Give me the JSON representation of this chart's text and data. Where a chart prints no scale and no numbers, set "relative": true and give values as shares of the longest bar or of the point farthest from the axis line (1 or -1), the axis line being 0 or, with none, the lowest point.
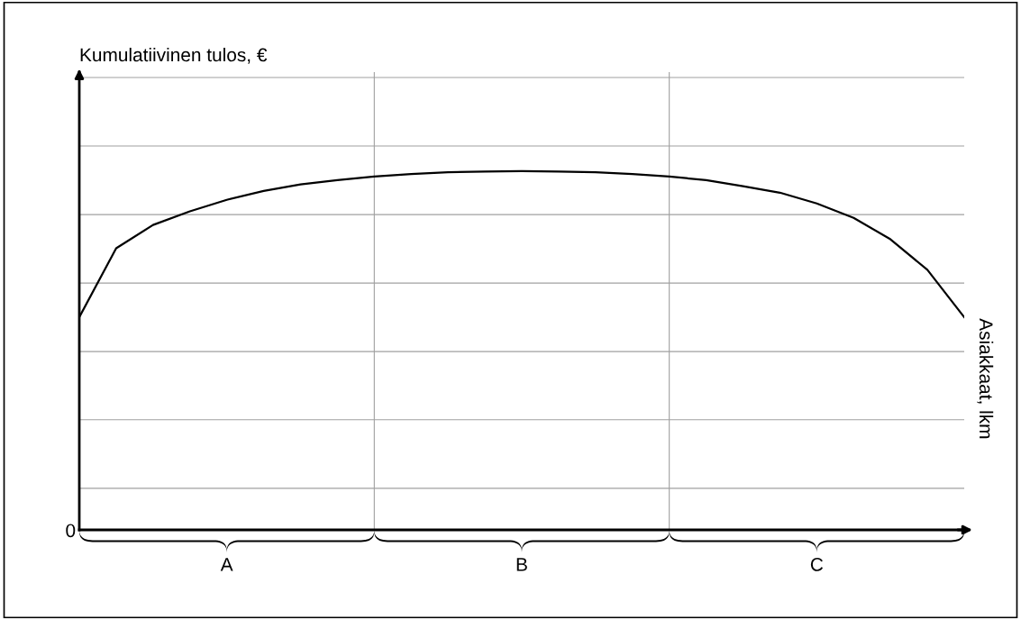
{
  "chart_data": {
    "type": "line",
    "relative": true,
    "categories": [
      null,
      null,
      null,
      null,
      null,
      null,
      null,
      null,
      null,
      null,
      null,
      null,
      null,
      null,
      null,
      null,
      null,
      null,
      null,
      null,
      null,
      null,
      null,
      null,
      null
    ],
    "series": [
      {
        "color": "#000000",
        "values": [
          0.593,
          0.785,
          0.85,
          0.888,
          0.92,
          0.945,
          0.963,
          0.975,
          0.985,
          0.992,
          0.997,
          0.999,
          1,
          0.999,
          0.997,
          0.992,
          0.985,
          0.975,
          0.958,
          0.94,
          0.91,
          0.87,
          0.81,
          0.725,
          0.593
        ]
      }
    ],
    "ref_lines": [
      {
        "axis": "y",
        "value": 0.116,
        "color": "#a0a0a0"
      },
      {
        "axis": "y",
        "value": 0.307,
        "color": "#a0a0a0"
      },
      {
        "axis": "y",
        "value": 0.497,
        "color": "#a0a0a0"
      },
      {
        "axis": "y",
        "value": 0.688,
        "color": "#a0a0a0"
      },
      {
        "axis": "y",
        "value": 0.879,
        "color": "#a0a0a0"
      },
      {
        "axis": "y",
        "value": 1.07,
        "color": "#a0a0a0"
      },
      {
        "axis": "y",
        "value": 1.261,
        "color": "#a0a0a0"
      }
    ],
    "annotations": [
      "Kumulatiivinen tulos, €",
      "Asiakkaat, lkm",
      "0",
      "A",
      "B",
      "C"
    ],
    "marker": "none",
    "line_style": "solid"
  }
}
